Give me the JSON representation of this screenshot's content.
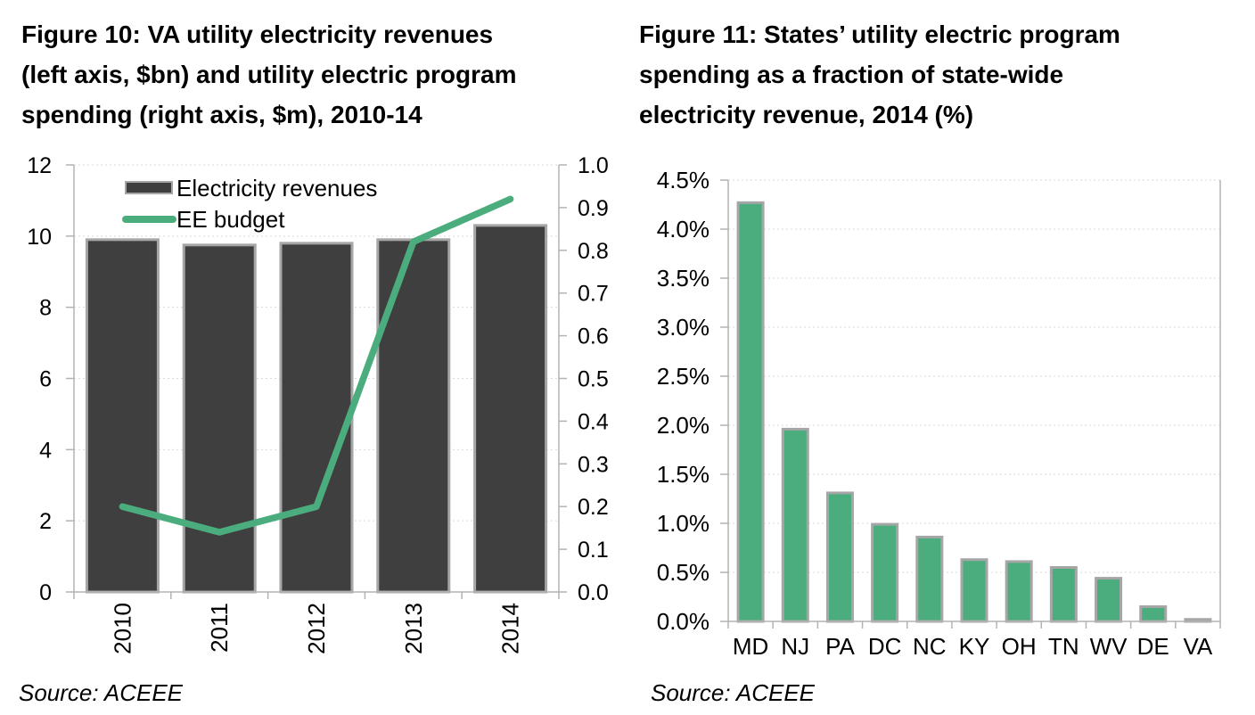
{
  "figures": [
    {
      "panel": "left",
      "title_lines": [
        "Figure 10: VA utility electricity revenues",
        "(left axis, $bn) and utility electric program",
        "spending (right axis, $m), 2010-14"
      ],
      "source": "Source: ACEEE"
    },
    {
      "panel": "right",
      "title_lines": [
        "Figure 11: States’ utility electric program",
        "spending as a fraction of state-wide",
        "electricity revenue, 2014 (%)"
      ],
      "source": "Source: ACEEE"
    }
  ],
  "chart_data": [
    {
      "type": "bar+line",
      "title": "Figure 10: VA utility electricity revenues (left axis, $bn) and utility electric program spending (right axis, $m), 2010-14",
      "categories": [
        "2010",
        "2011",
        "2012",
        "2013",
        "2014"
      ],
      "series": [
        {
          "name": "Electricity revenues",
          "type": "bar",
          "axis": "left",
          "values": [
            9.9,
            9.75,
            9.8,
            9.9,
            10.3
          ],
          "color": "#3f3f3f",
          "border_color": "#a6a6a6"
        },
        {
          "name": "EE budget",
          "type": "line",
          "axis": "right",
          "values": [
            0.2,
            0.14,
            0.2,
            0.82,
            0.92
          ],
          "color": "#4bad7d"
        }
      ],
      "axes": {
        "left": {
          "min": 0,
          "max": 12,
          "step": 2,
          "tick_labels": [
            "0",
            "2",
            "4",
            "6",
            "8",
            "10",
            "12"
          ]
        },
        "right": {
          "min": 0,
          "max": 1.0,
          "step": 0.1,
          "tick_labels": [
            "0.0",
            "0.1",
            "0.2",
            "0.3",
            "0.4",
            "0.5",
            "0.6",
            "0.7",
            "0.8",
            "0.9",
            "1.0"
          ]
        }
      },
      "x_tick_rotation": -90,
      "legend": {
        "position": "top-left",
        "entries": [
          "Electricity revenues",
          "EE budget"
        ]
      },
      "grid": true,
      "source": "Source: ACEEE"
    },
    {
      "type": "bar",
      "title": "Figure 11: States’ utility electric program spending as a fraction of state-wide electricity revenue, 2014 (%)",
      "categories": [
        "MD",
        "NJ",
        "PA",
        "DC",
        "NC",
        "KY",
        "OH",
        "TN",
        "WV",
        "DE",
        "VA"
      ],
      "values": [
        4.27,
        1.96,
        1.31,
        0.99,
        0.86,
        0.63,
        0.61,
        0.55,
        0.44,
        0.15,
        0.02
      ],
      "unit": "%",
      "bar_color": "#4bad7d",
      "bar_border_color": "#a6a6a6",
      "y_axis": {
        "min": 0,
        "max": 4.5,
        "step": 0.5,
        "tick_labels": [
          "0.0%",
          "0.5%",
          "1.0%",
          "1.5%",
          "2.0%",
          "2.5%",
          "3.0%",
          "3.5%",
          "4.0%",
          "4.5%"
        ]
      },
      "grid": true,
      "source": "Source: ACEEE"
    }
  ],
  "colors": {
    "bar_dark": "#3f3f3f",
    "green": "#4bad7d",
    "bar_border": "#a6a6a6",
    "axis": "#b3b3b3",
    "grid": "#d9d9d9",
    "text": "#000000",
    "background": "#ffffff"
  }
}
